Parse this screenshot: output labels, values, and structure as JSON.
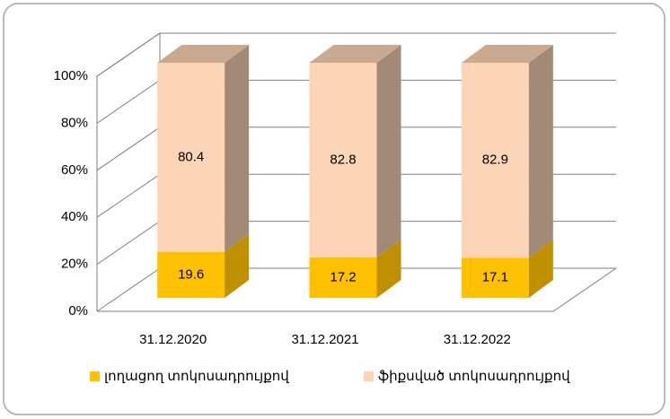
{
  "chart_data": {
    "type": "bar3d_stacked",
    "categories": [
      "31.12.2020",
      "31.12.2021",
      "31.12.2022"
    ],
    "series": [
      {
        "name": "լողացող տոկոսադրույքով",
        "color": "#ffc000",
        "values": [
          19.6,
          17.2,
          17.1
        ]
      },
      {
        "name": "ֆիքսված տոկոսադրույքով",
        "color": "#fbd5b5",
        "values": [
          80.4,
          82.8,
          82.9
        ]
      }
    ],
    "ylim": [
      0,
      100
    ],
    "yticks": [
      {
        "value": 0,
        "label": "0%"
      },
      {
        "value": 20,
        "label": "20%"
      },
      {
        "value": 40,
        "label": "40%"
      },
      {
        "value": 60,
        "label": "60%"
      },
      {
        "value": 80,
        "label": "80%"
      },
      {
        "value": 100,
        "label": "100%"
      }
    ],
    "grid": true,
    "legend": "bottom"
  }
}
